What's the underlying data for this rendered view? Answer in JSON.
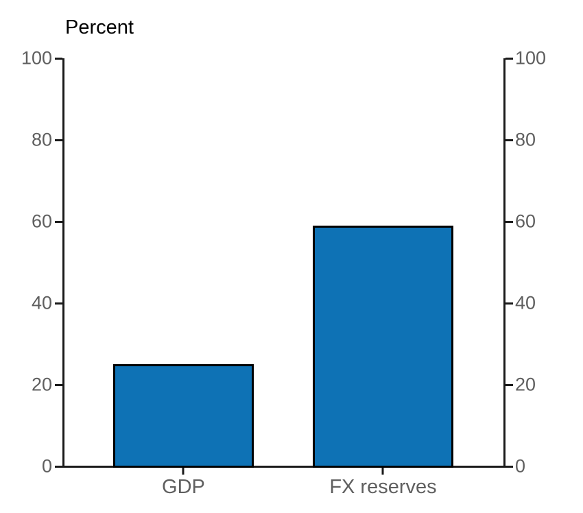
{
  "colors": {
    "bar_fill": "#0e72b5",
    "bar_border": "#000000",
    "axis": "#1a1a1a",
    "tick_label": "#5f5f5f",
    "title_color": "#000000",
    "bg": "#ffffff"
  },
  "chart_data": {
    "type": "bar",
    "categories": [
      "GDP",
      "FX reserves"
    ],
    "values": [
      25,
      59
    ],
    "title": "",
    "xlabel": "",
    "ylabel": "Percent",
    "ylim": [
      0,
      100
    ],
    "yticks": [
      0,
      20,
      40,
      60,
      80,
      100
    ],
    "grid": false,
    "legend": "none",
    "right_axis_mirror": true,
    "bar_orientation": "vertical"
  }
}
